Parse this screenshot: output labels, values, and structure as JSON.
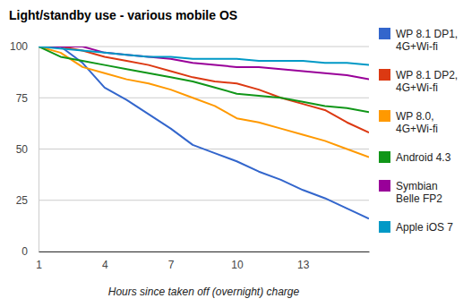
{
  "chart_data": {
    "type": "line",
    "title": "Light/standby use - various mobile OS",
    "x_label": "Hours since taken off (overnight) charge",
    "x": [
      1,
      2,
      3,
      4,
      5,
      6,
      7,
      8,
      9,
      10,
      11,
      12,
      13,
      14,
      15,
      16
    ],
    "xlim": [
      1,
      16
    ],
    "xticks": [
      1,
      4,
      7,
      10,
      13
    ],
    "ylim": [
      0,
      100
    ],
    "yticks": [
      0,
      25,
      50,
      75,
      100
    ],
    "grid": true,
    "legend": "right",
    "series": [
      {
        "name": "WP 8.1 DP1, 4G+Wi-fi",
        "color": "#3366cc",
        "values": [
          100,
          100,
          92,
          80,
          74,
          67,
          60,
          52,
          48,
          44,
          39,
          35,
          30,
          26,
          21,
          16
        ]
      },
      {
        "name": "WP 8.1 DP2, 4G+Wi-fi",
        "color": "#dc3912",
        "values": [
          100,
          100,
          98,
          95,
          93,
          91,
          88,
          85,
          83,
          82,
          79,
          75,
          72,
          69,
          63,
          58
        ]
      },
      {
        "name": "WP 8.0, 4G+Wi-fi",
        "color": "#ff9900",
        "values": [
          100,
          97,
          90,
          87,
          84,
          82,
          79,
          75,
          71,
          65,
          63,
          60,
          57,
          54,
          50,
          46
        ]
      },
      {
        "name": "Android 4.3",
        "color": "#109618",
        "values": [
          100,
          95,
          93,
          91,
          89,
          87,
          85,
          83,
          80,
          77,
          76,
          75,
          73,
          71,
          70,
          68
        ]
      },
      {
        "name": "Symbian Belle FP2",
        "color": "#990099",
        "values": [
          100,
          100,
          100,
          97,
          96,
          95,
          94,
          92,
          91,
          90,
          90,
          89,
          88,
          87,
          86,
          84
        ]
      },
      {
        "name": "Apple iOS 7",
        "color": "#0099c6",
        "values": [
          100,
          99,
          98,
          97,
          96,
          95,
          95,
          94,
          94,
          94,
          93,
          93,
          93,
          92,
          92,
          91
        ]
      }
    ]
  }
}
